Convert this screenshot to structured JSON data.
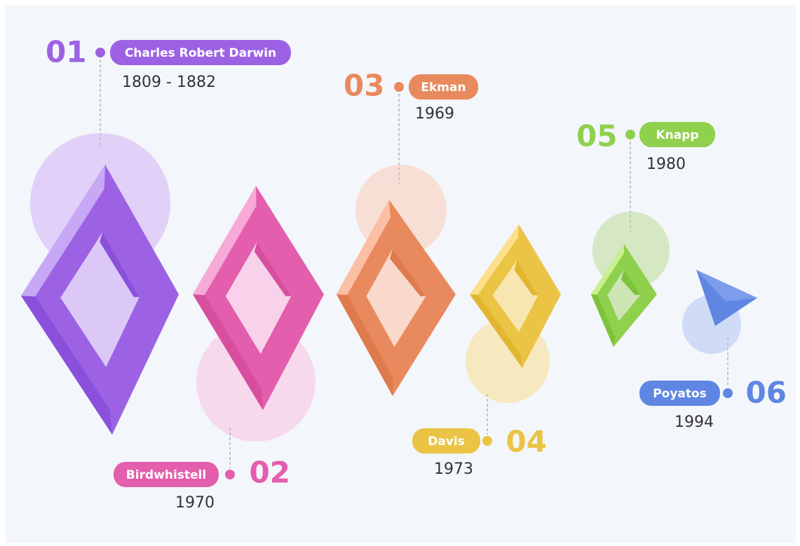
{
  "items": [
    {
      "number": "01",
      "name": "Charles Robert Darwin",
      "years": "1809 - 1882"
    },
    {
      "number": "02",
      "name": "Birdwhistell",
      "years": "1970"
    },
    {
      "number": "03",
      "name": "Ekman",
      "years": "1969"
    },
    {
      "number": "04",
      "name": "Davis",
      "years": "1973"
    },
    {
      "number": "05",
      "name": "Knapp",
      "years": "1980"
    },
    {
      "number": "06",
      "name": "Poyatos",
      "years": "1994"
    }
  ]
}
